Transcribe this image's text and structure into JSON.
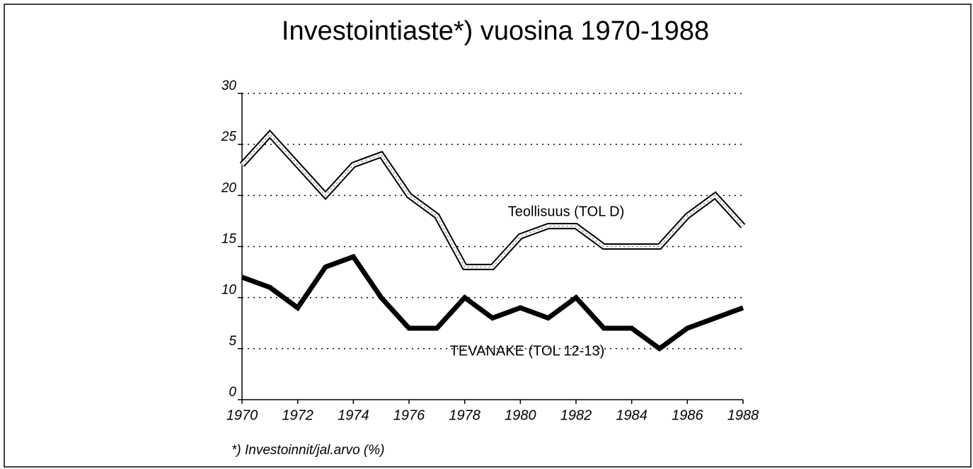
{
  "chart_data": {
    "type": "line",
    "title": "Investointiaste*) vuosina 1970-1988",
    "footnote": "*) Investoinnit/jal.arvo (%)",
    "x": [
      1970,
      1971,
      1972,
      1973,
      1974,
      1975,
      1976,
      1977,
      1978,
      1979,
      1980,
      1981,
      1982,
      1983,
      1984,
      1985,
      1986,
      1987,
      1988
    ],
    "series": [
      {
        "name": "Teollisuus (TOL D)",
        "color": "#000000",
        "values": [
          23,
          26,
          23,
          20,
          23,
          24,
          20,
          18,
          13,
          13,
          16,
          17,
          17,
          15,
          15,
          15,
          18,
          20,
          17
        ]
      },
      {
        "name": "TEVANAKE (TOL 12-13)",
        "color": "#000000",
        "values": [
          12,
          11,
          9,
          13,
          14,
          10,
          7,
          7,
          10,
          8,
          9,
          8,
          10,
          7,
          7,
          5,
          7,
          8,
          9
        ]
      }
    ],
    "xlim": [
      1970,
      1988
    ],
    "xticks": [
      1970,
      1972,
      1974,
      1976,
      1978,
      1980,
      1982,
      1984,
      1986,
      1988
    ],
    "ylim": [
      0,
      30
    ],
    "yticks": [
      0,
      5,
      10,
      15,
      20,
      25,
      30
    ],
    "grid": true
  }
}
